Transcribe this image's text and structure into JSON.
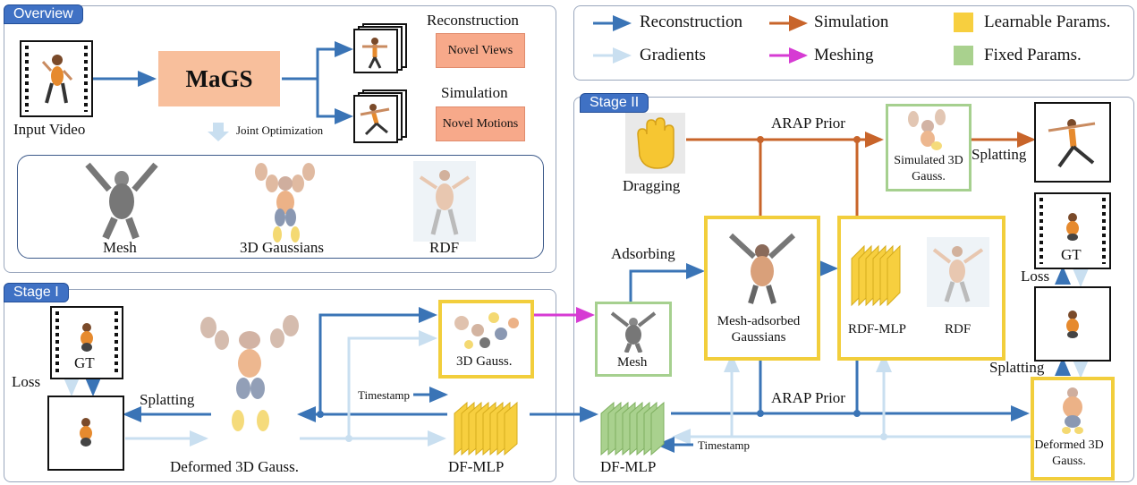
{
  "overview": {
    "tab": "Overview",
    "input_label": "Input Video",
    "core_label": "MaGS",
    "joint_label": "Joint Optimization",
    "recon_title": "Reconstruction",
    "recon_box": "Novel Views",
    "sim_title": "Simulation",
    "sim_box": "Novel Motions",
    "mesh_label": "Mesh",
    "gauss_label": "3D Gaussians",
    "rdf_label": "RDF"
  },
  "legend": {
    "reconstruction": "Reconstruction",
    "simulation": "Simulation",
    "gradients": "Gradients",
    "meshing": "Meshing",
    "learnable": "Learnable Params.",
    "fixed": "Fixed Params."
  },
  "stage1": {
    "tab": "Stage I",
    "gt": "GT",
    "loss": "Loss",
    "splatting": "Splatting",
    "deformed": "Deformed 3D Gauss.",
    "gauss3d": "3D Gauss.",
    "timestamp": "Timestamp",
    "dfmlp": "DF-MLP"
  },
  "stage2": {
    "tab": "Stage II",
    "dragging": "Dragging",
    "arap_top": "ARAP Prior",
    "simulated": "Simulated 3D Gauss.",
    "splatting_top": "Splatting",
    "adsorbing": "Adsorbing",
    "mesh_adsorbed": "Mesh-adsorbed Gaussians",
    "rdfmlp": "RDF-MLP",
    "rdf": "RDF",
    "mesh": "Mesh",
    "gt": "GT",
    "loss": "Loss",
    "splatting_bottom": "Splatting",
    "arap_bottom": "ARAP Prior",
    "dfmlp": "DF-MLP",
    "timestamp": "Timestamp",
    "deformed": "Deformed 3D Gauss."
  },
  "colors": {
    "reconstruction": "#3a74b6",
    "simulation": "#c8642a",
    "gradients": "#c9dff0",
    "meshing": "#d63bd3",
    "learnable": "#f7cf3f",
    "fixed": "#a9d18e"
  }
}
